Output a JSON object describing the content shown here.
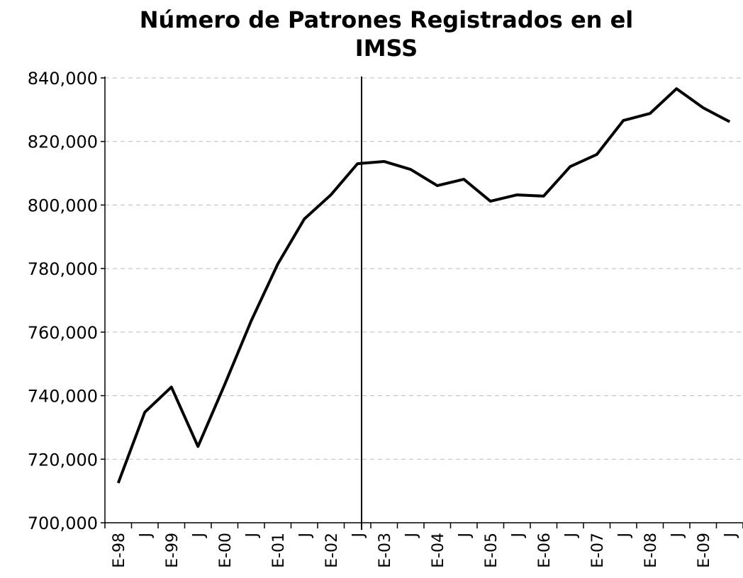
{
  "chart_data": {
    "type": "line",
    "title": "Número de Patrones Registrados en el IMSS",
    "categories": [
      "E-98",
      "J",
      "E-99",
      "J",
      "E-00",
      "J",
      "E-01",
      "J",
      "E-02",
      "J",
      "E-03",
      "J",
      "E-04",
      "J",
      "E-05",
      "J",
      "E-06",
      "J",
      "E-07",
      "J",
      "E-08",
      "J",
      "E-09",
      "J"
    ],
    "series": [
      {
        "color": "#000000",
        "values": [
          712500,
          734800,
          742700,
          724000,
          743400,
          763500,
          781400,
          795600,
          803200,
          813000,
          813700,
          811200,
          806100,
          808100,
          801200,
          803200,
          802800,
          812100,
          815900,
          826600,
          828800,
          836600,
          830600,
          826200
        ]
      }
    ],
    "ylim": [
      700000,
      840000
    ],
    "yticks": [
      {
        "value": 700000,
        "label": "700,000"
      },
      {
        "value": 720000,
        "label": "720,000"
      },
      {
        "value": 740000,
        "label": "740,000"
      },
      {
        "value": 760000,
        "label": "760,000"
      },
      {
        "value": 780000,
        "label": "780,000"
      },
      {
        "value": 800000,
        "label": "800,000"
      },
      {
        "value": 820000,
        "label": "820,000"
      },
      {
        "value": 840000,
        "label": "840,000"
      }
    ],
    "grid": true
  }
}
